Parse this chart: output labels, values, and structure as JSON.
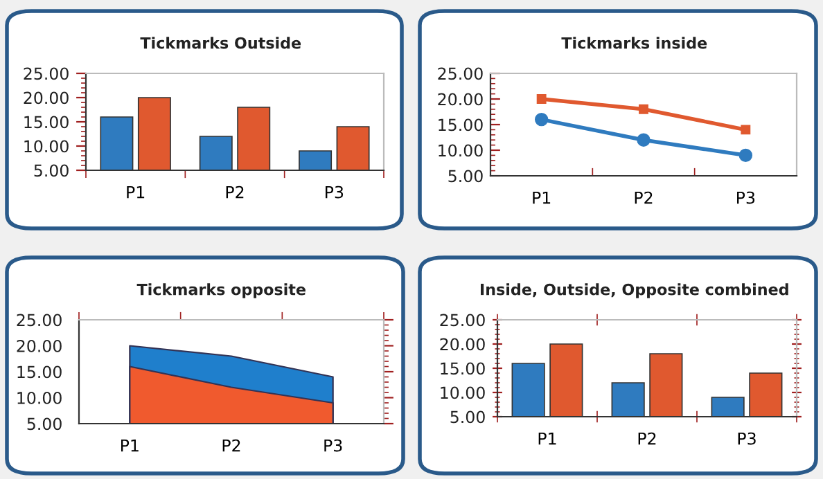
{
  "chart_data": [
    {
      "type": "bar",
      "title": "Tickmarks Outside",
      "categories": [
        "P1",
        "P2",
        "P3"
      ],
      "series": [
        {
          "color": "#2f7bbf",
          "values": [
            16,
            12,
            9
          ]
        },
        {
          "color": "#e0592f",
          "values": [
            20,
            18,
            14
          ]
        }
      ],
      "ylim": [
        5,
        25
      ],
      "yticks": [
        {
          "value": 5,
          "label": "5.00"
        },
        {
          "value": 10,
          "label": "10.00"
        },
        {
          "value": 15,
          "label": "15.00"
        },
        {
          "value": 20,
          "label": "20.00"
        },
        {
          "value": 25,
          "label": "25.00"
        }
      ]
    },
    {
      "type": "line",
      "title": "Tickmarks inside",
      "categories": [
        "P1",
        "P2",
        "P3"
      ],
      "series": [
        {
          "color": "#2f7bbf",
          "values": [
            16,
            12,
            9
          ],
          "marker": "circle"
        },
        {
          "color": "#e0592f",
          "values": [
            20,
            18,
            14
          ],
          "marker": "square"
        }
      ],
      "ylim": [
        5,
        25
      ],
      "yticks": [
        {
          "value": 5,
          "label": "5.00"
        },
        {
          "value": 10,
          "label": "10.00"
        },
        {
          "value": 15,
          "label": "15.00"
        },
        {
          "value": 20,
          "label": "20.00"
        },
        {
          "value": 25,
          "label": "25.00"
        }
      ]
    },
    {
      "type": "area",
      "title": "Tickmarks opposite",
      "categories": [
        "P1",
        "P2",
        "P3"
      ],
      "series": [
        {
          "color": "#1f7fcc",
          "values": [
            20,
            18,
            14
          ]
        },
        {
          "color": "#f05a2e",
          "values": [
            16,
            12,
            9
          ]
        }
      ],
      "ylim": [
        5,
        25
      ],
      "yticks": [
        {
          "value": 5,
          "label": "5.00"
        },
        {
          "value": 10,
          "label": "10.00"
        },
        {
          "value": 15,
          "label": "15.00"
        },
        {
          "value": 20,
          "label": "20.00"
        },
        {
          "value": 25,
          "label": "25.00"
        }
      ]
    },
    {
      "type": "bar",
      "title": "Inside, Outside, Opposite combined",
      "categories": [
        "P1",
        "P2",
        "P3"
      ],
      "series": [
        {
          "color": "#2f7bbf",
          "values": [
            16,
            12,
            9
          ]
        },
        {
          "color": "#e0592f",
          "values": [
            20,
            18,
            14
          ]
        }
      ],
      "ylim": [
        5,
        25
      ],
      "yticks": [
        {
          "value": 5,
          "label": "5.00"
        },
        {
          "value": 10,
          "label": "10.00"
        },
        {
          "value": 15,
          "label": "15.00"
        },
        {
          "value": 20,
          "label": "20.00"
        },
        {
          "value": 25,
          "label": "25.00"
        }
      ]
    }
  ]
}
